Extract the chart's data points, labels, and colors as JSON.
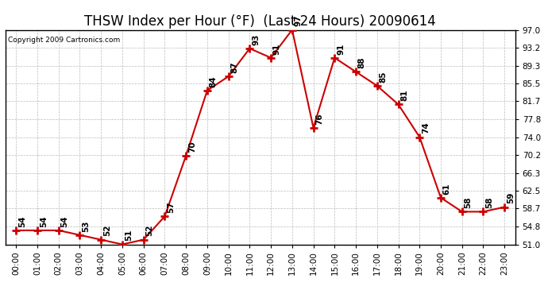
{
  "title": "THSW Index per Hour (°F)  (Last 24 Hours) 20090614",
  "copyright": "Copyright 2009 Cartronics.com",
  "hours": [
    "00:00",
    "01:00",
    "02:00",
    "03:00",
    "04:00",
    "05:00",
    "06:00",
    "07:00",
    "08:00",
    "09:00",
    "10:00",
    "11:00",
    "12:00",
    "13:00",
    "14:00",
    "15:00",
    "16:00",
    "17:00",
    "18:00",
    "19:00",
    "20:00",
    "21:00",
    "22:00",
    "23:00"
  ],
  "values": [
    54,
    54,
    54,
    53,
    52,
    51,
    52,
    57,
    70,
    84,
    87,
    93,
    91,
    97,
    76,
    91,
    88,
    85,
    81,
    74,
    61,
    58,
    58,
    59
  ],
  "line_color": "#cc0000",
  "marker": "+",
  "marker_color": "#cc0000",
  "bg_color": "#ffffff",
  "grid_color": "#bbbbbb",
  "ylim": [
    51.0,
    97.0
  ],
  "yticks": [
    51.0,
    54.8,
    58.7,
    62.5,
    66.3,
    70.2,
    74.0,
    77.8,
    81.7,
    85.5,
    89.3,
    93.2,
    97.0
  ],
  "title_fontsize": 12,
  "label_fontsize": 7.5,
  "annotation_fontsize": 7.5
}
